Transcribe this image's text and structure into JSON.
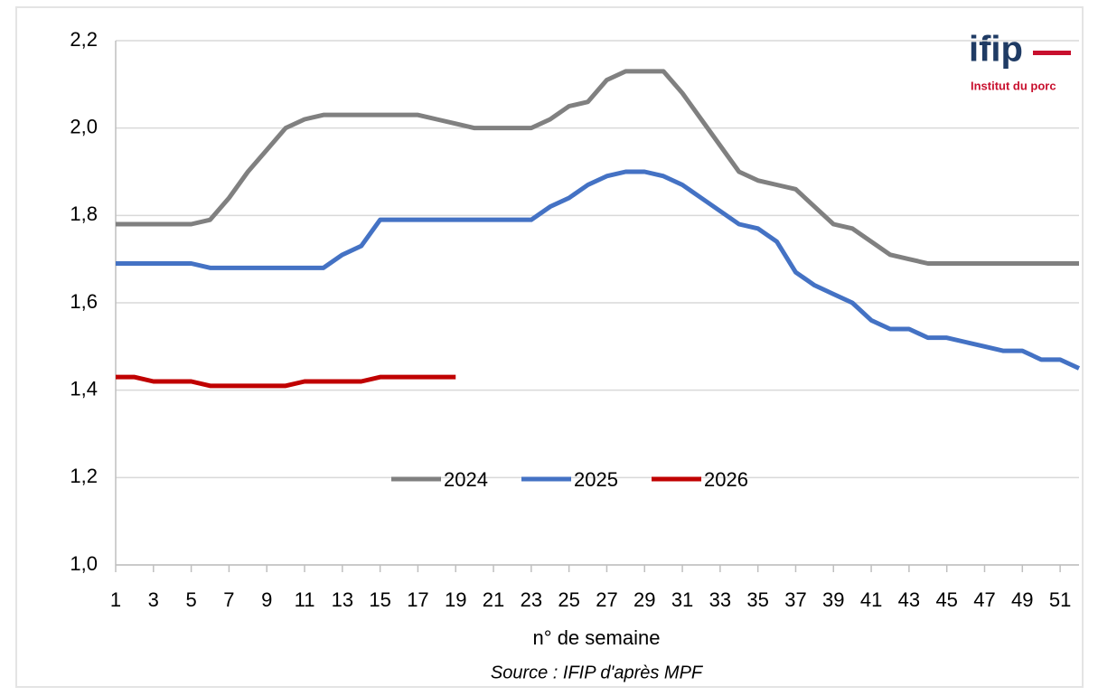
{
  "chart_data": {
    "type": "line",
    "x_label": "n° de semaine",
    "source": "Source : IFIP d'après MPF",
    "logo": {
      "name": "ifip",
      "tagline": "Institut du porc"
    },
    "x": [
      1,
      2,
      3,
      4,
      5,
      6,
      7,
      8,
      9,
      10,
      11,
      12,
      13,
      14,
      15,
      16,
      17,
      18,
      19,
      20,
      21,
      22,
      23,
      24,
      25,
      26,
      27,
      28,
      29,
      30,
      31,
      32,
      33,
      34,
      35,
      36,
      37,
      38,
      39,
      40,
      41,
      42,
      43,
      44,
      45,
      46,
      47,
      48,
      49,
      50,
      51,
      52
    ],
    "xlim": [
      1,
      52
    ],
    "xticks": [
      1,
      3,
      5,
      7,
      9,
      11,
      13,
      15,
      17,
      19,
      21,
      23,
      25,
      27,
      29,
      31,
      33,
      35,
      37,
      39,
      41,
      43,
      45,
      47,
      49,
      51
    ],
    "ylim": [
      1.0,
      2.2
    ],
    "yticks": [
      {
        "value": 1.0,
        "label": "1,0"
      },
      {
        "value": 1.2,
        "label": "1,2"
      },
      {
        "value": 1.4,
        "label": "1,4"
      },
      {
        "value": 1.6,
        "label": "1,6"
      },
      {
        "value": 1.8,
        "label": "1,8"
      },
      {
        "value": 2.0,
        "label": "2,0"
      },
      {
        "value": 2.2,
        "label": "2,2"
      }
    ],
    "grid": true,
    "legend": "center",
    "series": [
      {
        "name": "2024",
        "color": "#808080",
        "values": [
          1.78,
          1.78,
          1.78,
          1.78,
          1.78,
          1.79,
          1.84,
          1.9,
          1.95,
          2.0,
          2.02,
          2.03,
          2.03,
          2.03,
          2.03,
          2.03,
          2.03,
          2.02,
          2.01,
          2.0,
          2.0,
          2.0,
          2.0,
          2.02,
          2.05,
          2.06,
          2.11,
          2.13,
          2.13,
          2.13,
          2.08,
          2.02,
          1.96,
          1.9,
          1.88,
          1.87,
          1.86,
          1.82,
          1.78,
          1.77,
          1.74,
          1.71,
          1.7,
          1.69,
          1.69,
          1.69,
          1.69,
          1.69,
          1.69,
          1.69,
          1.69,
          1.69
        ]
      },
      {
        "name": "2025",
        "color": "#4472c4",
        "values": [
          1.69,
          1.69,
          1.69,
          1.69,
          1.69,
          1.68,
          1.68,
          1.68,
          1.68,
          1.68,
          1.68,
          1.68,
          1.71,
          1.73,
          1.79,
          1.79,
          1.79,
          1.79,
          1.79,
          1.79,
          1.79,
          1.79,
          1.79,
          1.82,
          1.84,
          1.87,
          1.89,
          1.9,
          1.9,
          1.89,
          1.87,
          1.84,
          1.81,
          1.78,
          1.77,
          1.74,
          1.67,
          1.64,
          1.62,
          1.6,
          1.56,
          1.54,
          1.54,
          1.52,
          1.52,
          1.51,
          1.5,
          1.49,
          1.49,
          1.47,
          1.47,
          1.45
        ]
      },
      {
        "name": "2026",
        "color": "#c00000",
        "values": [
          1.43,
          1.43,
          1.42,
          1.42,
          1.42,
          1.41,
          1.41,
          1.41,
          1.41,
          1.41,
          1.42,
          1.42,
          1.42,
          1.42,
          1.43,
          1.43,
          1.43,
          1.43,
          1.43,
          null,
          null,
          null,
          null,
          null,
          null,
          null,
          null,
          null,
          null,
          null,
          null,
          null,
          null,
          null,
          null,
          null,
          null,
          null,
          null,
          null,
          null,
          null,
          null,
          null,
          null,
          null,
          null,
          null,
          null,
          null,
          null,
          null
        ]
      }
    ]
  }
}
